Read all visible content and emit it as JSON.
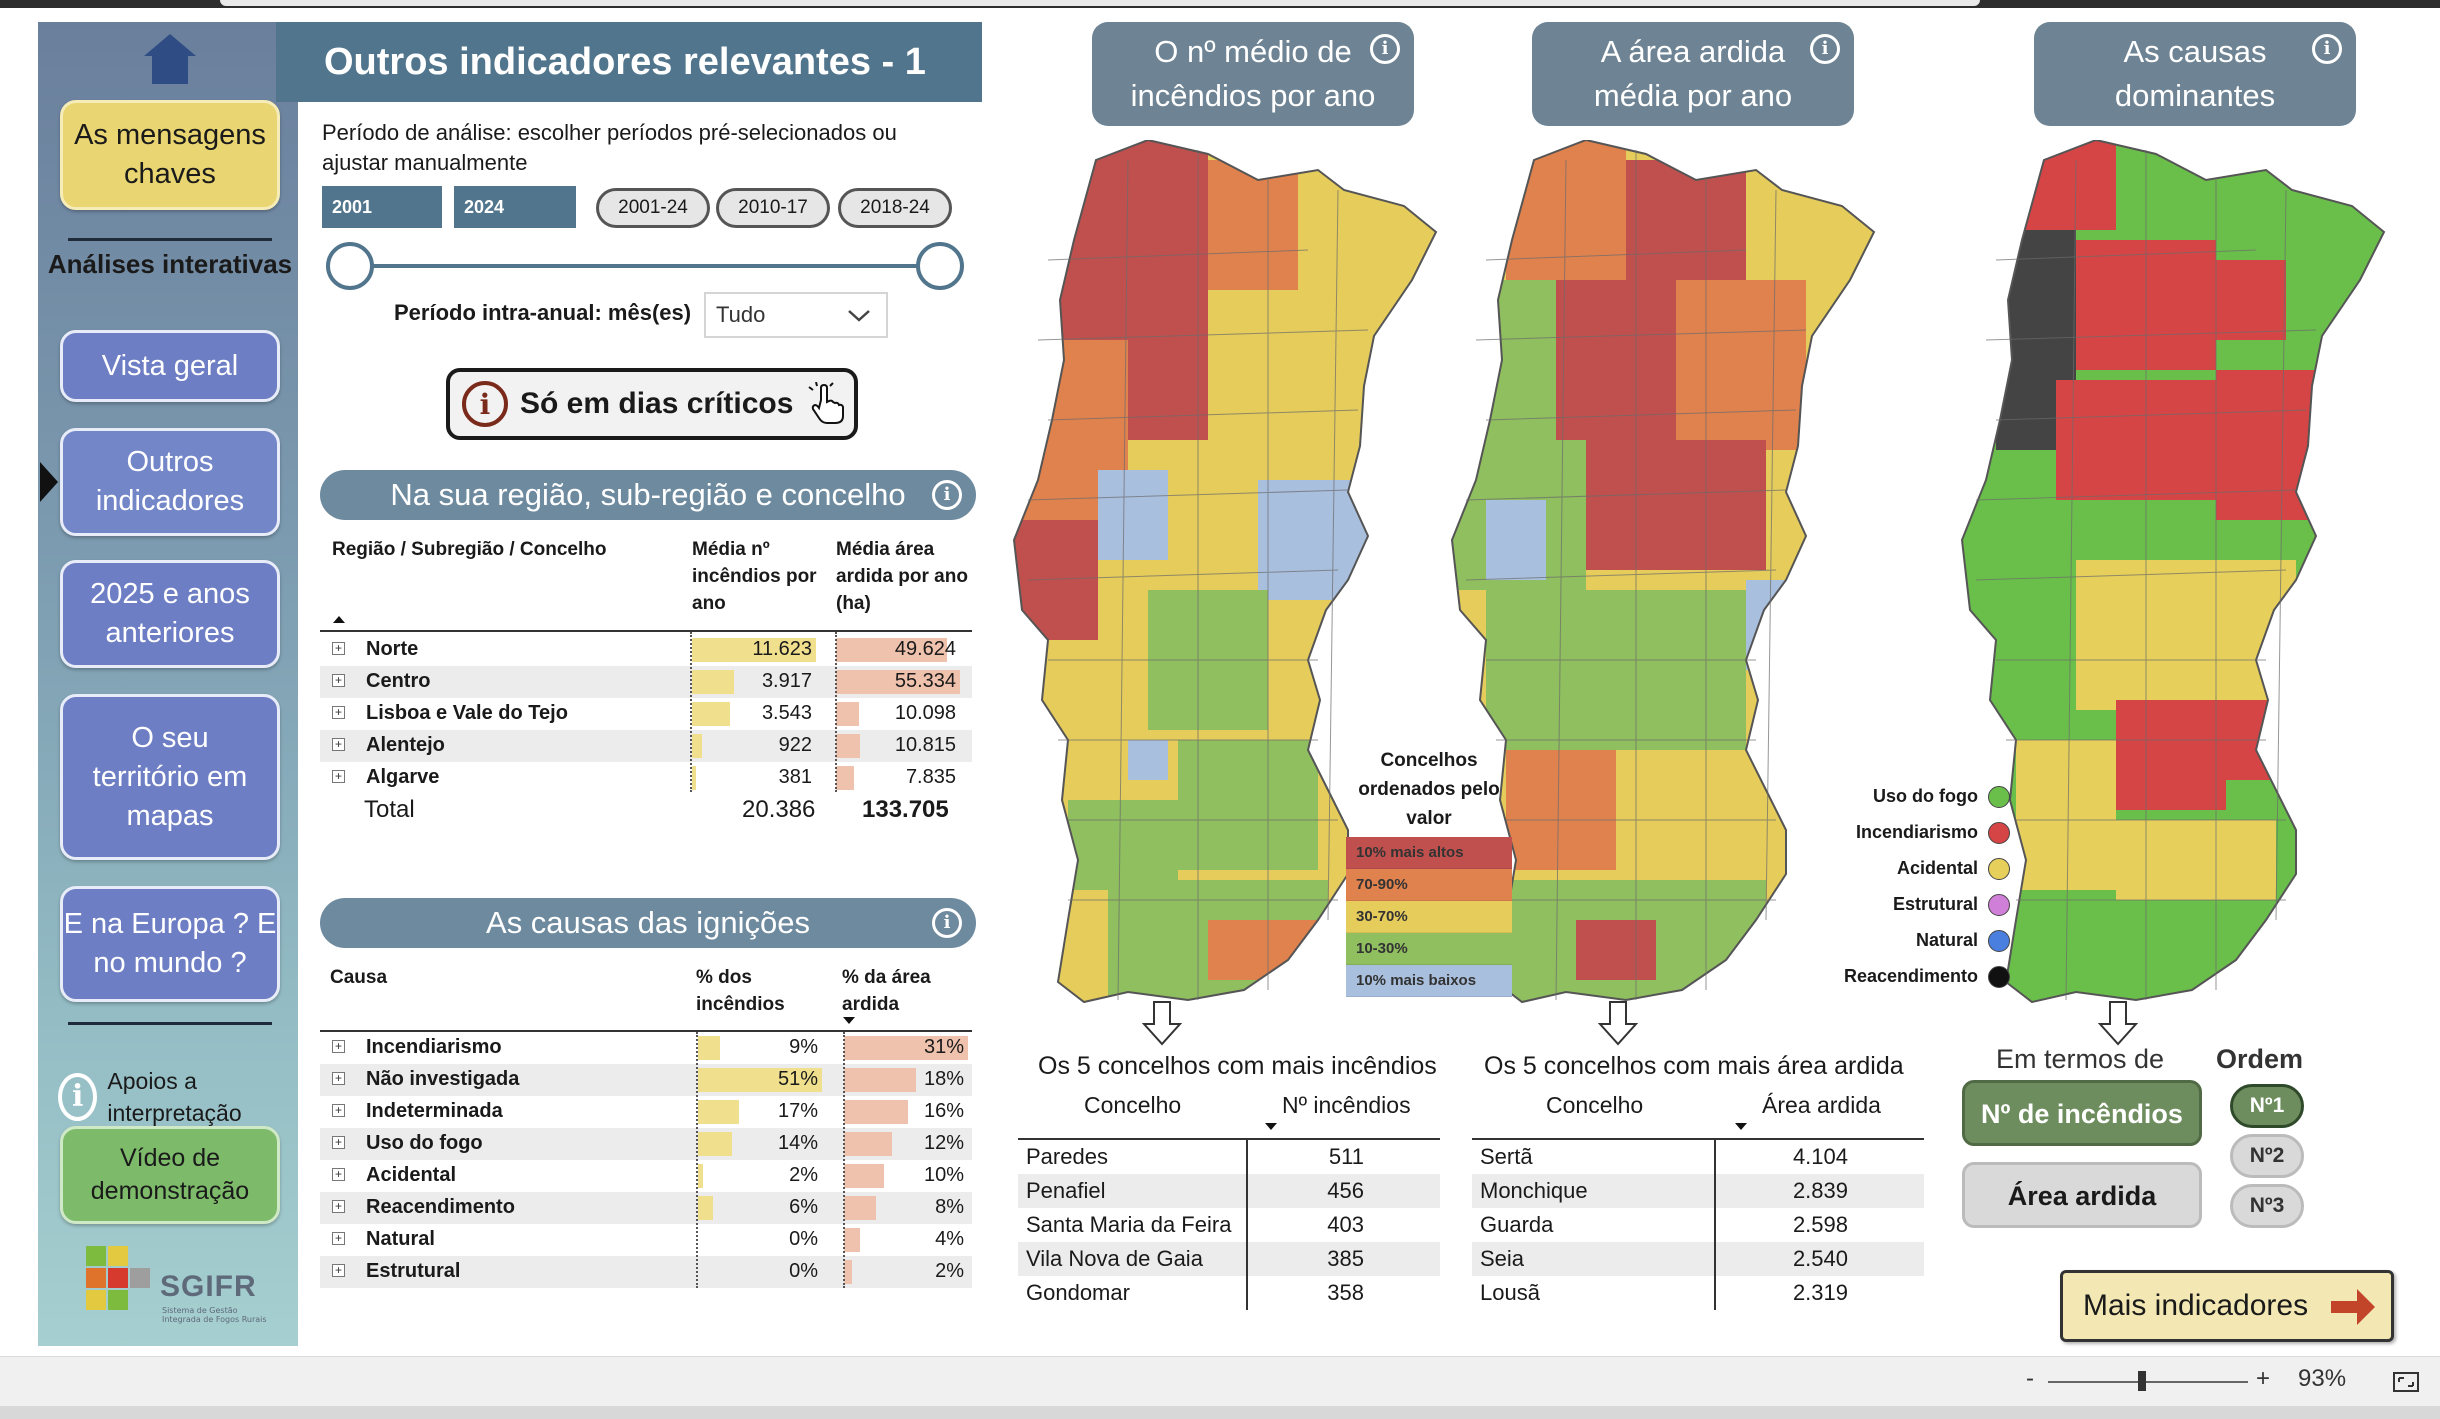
{
  "sidebar": {
    "mensagens": "As mensagens chaves",
    "analises": "Análises interativas",
    "vista_geral": "Vista geral",
    "outros": "Outros indicadores",
    "anos": "2025 e anos anteriores",
    "territorio": "O seu território em mapas",
    "europa": "E na Europa ? E no mundo ?",
    "apoios": "Apoios a interpretação",
    "video": "Vídeo de demonstração",
    "logo_text": "SGIFR",
    "logo_sub": "Sistema de Gestão Integrada de Fogos Rurais"
  },
  "header": {
    "title": "Outros indicadores relevantes - 1"
  },
  "period": {
    "label": "Período de análise: escolher períodos pré-selecionados ou ajustar manualmente",
    "start": "2001",
    "end": "2024",
    "presets": [
      "2001-24",
      "2010-17",
      "2018-24"
    ],
    "intra_label": "Período intra-anual: mês(es)",
    "intra_value": "Tudo",
    "critical_button": "Só em dias críticos"
  },
  "region_table": {
    "heading": "Na sua região, sub-região e concelho",
    "col_name": "Região / Subregião / Concelho",
    "col_fires": "Média nº incêndios por ano",
    "col_area": "Média área ardida por ano (ha)",
    "rows": [
      {
        "name": "Norte",
        "fires": "11.623",
        "area": "49.624",
        "fires_v": 11623,
        "area_v": 49624
      },
      {
        "name": "Centro",
        "fires": "3.917",
        "area": "55.334",
        "fires_v": 3917,
        "area_v": 55334
      },
      {
        "name": "Lisboa e Vale do Tejo",
        "fires": "3.543",
        "area": "10.098",
        "fires_v": 3543,
        "area_v": 10098
      },
      {
        "name": "Alentejo",
        "fires": "922",
        "area": "10.815",
        "fires_v": 922,
        "area_v": 10815
      },
      {
        "name": "Algarve",
        "fires": "381",
        "area": "7.835",
        "fires_v": 381,
        "area_v": 7835
      }
    ],
    "total_label": "Total",
    "total_fires": "20.386",
    "total_area": "133.705"
  },
  "causes_table": {
    "heading": "As causas das ignições",
    "col_name": "Causa",
    "col_fires": "% dos incêndios",
    "col_area": "% da área ardida",
    "rows": [
      {
        "name": "Incendiarismo",
        "fires": "9%",
        "area": "31%",
        "fires_v": 9,
        "area_v": 31
      },
      {
        "name": "Não investigada",
        "fires": "51%",
        "area": "18%",
        "fires_v": 51,
        "area_v": 18
      },
      {
        "name": "Indeterminada",
        "fires": "17%",
        "area": "16%",
        "fires_v": 17,
        "area_v": 16
      },
      {
        "name": "Uso do fogo",
        "fires": "14%",
        "area": "12%",
        "fires_v": 14,
        "area_v": 12
      },
      {
        "name": "Acidental",
        "fires": "2%",
        "area": "10%",
        "fires_v": 2,
        "area_v": 10
      },
      {
        "name": "Reacendimento",
        "fires": "6%",
        "area": "8%",
        "fires_v": 6,
        "area_v": 8
      },
      {
        "name": "Natural",
        "fires": "0%",
        "area": "4%",
        "fires_v": 0,
        "area_v": 4
      },
      {
        "name": "Estrutural",
        "fires": "0%",
        "area": "2%",
        "fires_v": 0,
        "area_v": 2
      }
    ]
  },
  "maps": {
    "map1_title": "O nº médio de incêndios por ano",
    "map2_title": "A área ardida média por ano",
    "map3_title": "As causas dominantes",
    "legend_title": "Concelhos ordenados pelo valor",
    "legend": [
      {
        "label": "10% mais altos",
        "color": "#c0504d"
      },
      {
        "label": "70-90%",
        "color": "#e0824e"
      },
      {
        "label": "30-70%",
        "color": "#e5cc5b"
      },
      {
        "label": "10-30%",
        "color": "#8fbf5f"
      },
      {
        "label": "10% mais baixos",
        "color": "#a9bfde"
      }
    ],
    "causes_legend": [
      {
        "label": "Uso do fogo",
        "color": "#6abf4b"
      },
      {
        "label": "Incendiarismo",
        "color": "#d64545"
      },
      {
        "label": "Acidental",
        "color": "#e6cf5a"
      },
      {
        "label": "Estrutural",
        "color": "#d07fd8"
      },
      {
        "label": "Natural",
        "color": "#4a7fe0"
      },
      {
        "label": "Reacendimento",
        "color": "#111111"
      }
    ]
  },
  "top_fires": {
    "title": "Os 5 concelhos com mais incêndios",
    "col_a": "Concelho",
    "col_b": "Nº incêndios",
    "rows": [
      {
        "name": "Paredes",
        "value": "511"
      },
      {
        "name": "Penafiel",
        "value": "456"
      },
      {
        "name": "Santa Maria da Feira",
        "value": "403"
      },
      {
        "name": "Vila Nova de Gaia",
        "value": "385"
      },
      {
        "name": "Gondomar",
        "value": "358"
      }
    ]
  },
  "top_area": {
    "title": "Os 5 concelhos com mais área ardida",
    "col_a": "Concelho",
    "col_b": "Área ardida",
    "rows": [
      {
        "name": "Sertã",
        "value": "4.104"
      },
      {
        "name": "Monchique",
        "value": "2.839"
      },
      {
        "name": "Guarda",
        "value": "2.598"
      },
      {
        "name": "Seia",
        "value": "2.540"
      },
      {
        "name": "Lousã",
        "value": "2.319"
      }
    ]
  },
  "controls": {
    "em_termos": "Em termos de",
    "ordem": "Ordem",
    "btn_fires": "Nº de incêndios",
    "btn_area": "Área ardida",
    "n1": "Nº1",
    "n2": "Nº2",
    "n3": "Nº3",
    "mais": "Mais indicadores"
  },
  "statusbar": {
    "minus": "-",
    "plus": "+",
    "zoom": "93%"
  }
}
